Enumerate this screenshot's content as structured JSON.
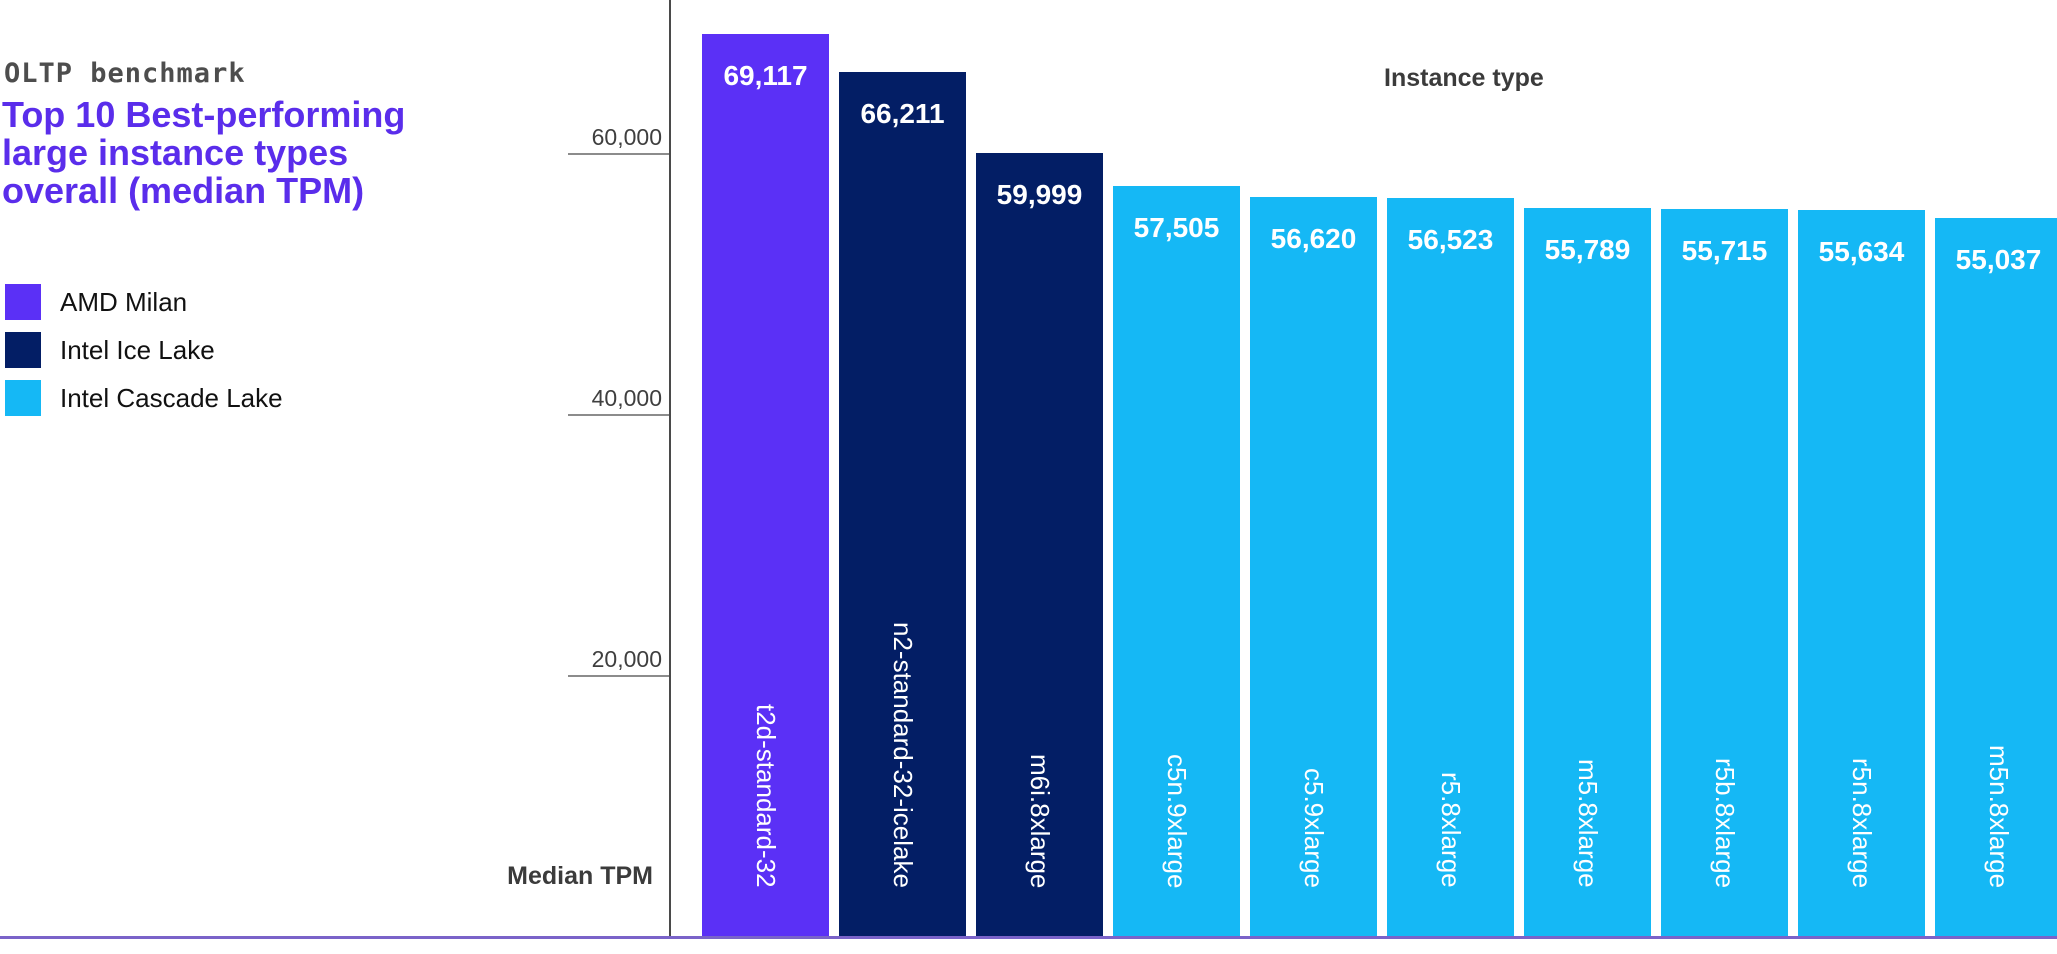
{
  "header": {
    "eyebrow": "OLTP benchmark",
    "title_lines": [
      "Top 10 Best-performing",
      "large instance types",
      "overall (median TPM)"
    ]
  },
  "legend": {
    "items": [
      {
        "label": "AMD Milan",
        "color": "#5B30F6"
      },
      {
        "label": "Intel Ice Lake",
        "color": "#031E65"
      },
      {
        "label": "Intel Cascade Lake",
        "color": "#15B8F5"
      }
    ]
  },
  "chart_data": {
    "type": "bar",
    "title": "Top 10 Best-performing large instance types overall (median TPM)",
    "subtitle": "OLTP benchmark",
    "xlabel": "Instance type",
    "ylabel": "Median TPM",
    "categories": [
      "t2d-standard-32",
      "n2-standard-32-icelake",
      "m6i.8xlarge",
      "c5n.9xlarge",
      "c5.9xlarge",
      "r5.8xlarge",
      "m5.8xlarge",
      "r5b.8xlarge",
      "r5n.8xlarge",
      "m5n.8xlarge"
    ],
    "values": [
      69117,
      66211,
      59999,
      57505,
      56620,
      56523,
      55789,
      55715,
      55634,
      55037
    ],
    "value_labels": [
      "69,117",
      "66,211",
      "59,999",
      "57,505",
      "56,620",
      "56,523",
      "55,789",
      "55,715",
      "55,634",
      "55,037"
    ],
    "bar_series": [
      "AMD Milan",
      "Intel Ice Lake",
      "Intel Ice Lake",
      "Intel Cascade Lake",
      "Intel Cascade Lake",
      "Intel Cascade Lake",
      "Intel Cascade Lake",
      "Intel Cascade Lake",
      "Intel Cascade Lake",
      "Intel Cascade Lake"
    ],
    "y_ticks": {
      "values": [
        20000,
        40000,
        60000
      ],
      "labels": [
        "20,000",
        "40,000",
        "60,000"
      ]
    },
    "ylim": [
      0,
      71700
    ],
    "grid": false,
    "legend_position": "upper-left",
    "bar_label_rotation": "vertical",
    "colors": {
      "title": "#5A2DEB",
      "eyebrow_text": "#4D4D4D",
      "axis_line": "#4A4A4A",
      "tick_line": "#8C8C8C",
      "tick_label": "#3F3F3F",
      "baseline": "#7A63C9",
      "bar_value_text": "#FFFFFF",
      "bar_category_text": "#FFFFFF"
    }
  }
}
